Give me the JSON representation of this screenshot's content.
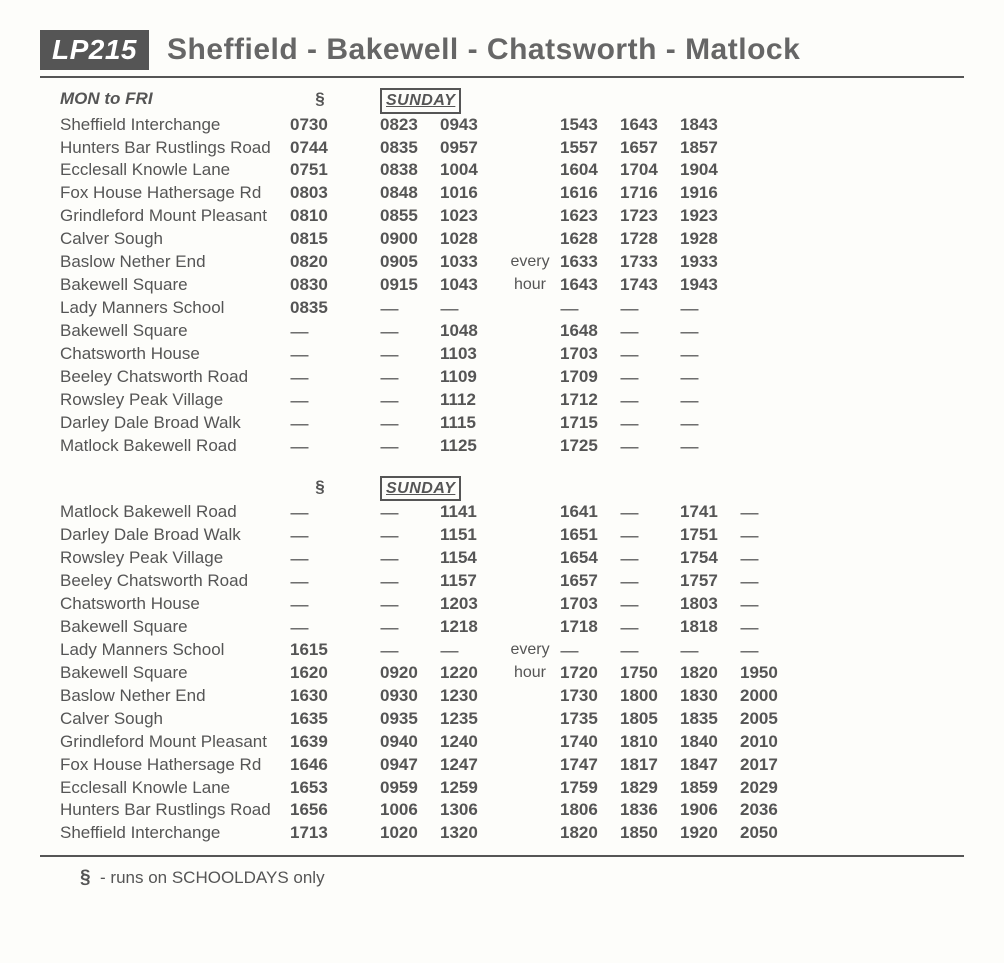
{
  "route_code": "LP215",
  "route_title": "Sheffield - Bakewell - Chatsworth - Matlock",
  "schooldays_symbol": "§",
  "sunday_label": "SUNDAY",
  "day_heading_out": "MON to FRI",
  "every_label": "every",
  "hour_label": "hour",
  "dash": "------",
  "footnote_symbol": "§",
  "footnote_text": "- runs on SCHOOLDAYS only",
  "outbound": {
    "stops": [
      "Sheffield Interchange",
      "Hunters Bar Rustlings Road",
      "Ecclesall Knowle Lane",
      "Fox House Hathersage Rd",
      "Grindleford Mount Pleasant",
      "Calver Sough",
      "Baslow Nether End",
      "Bakewell Square",
      "Lady Manners School",
      "Bakewell Square",
      "Chatsworth House",
      "Beeley Chatsworth Road",
      "Rowsley Peak Village",
      "Darley Dale Broad Walk",
      "Matlock Bakewell Road"
    ],
    "col_monfri": [
      "0730",
      "0744",
      "0751",
      "0803",
      "0810",
      "0815",
      "0820",
      "0830",
      "0835",
      "-",
      "-",
      "-",
      "-",
      "-",
      "-"
    ],
    "col_sun1": [
      "0823",
      "0835",
      "0838",
      "0848",
      "0855",
      "0900",
      "0905",
      "0915",
      "-",
      "-",
      "-",
      "-",
      "-",
      "-",
      "-"
    ],
    "col_sun2": [
      "0943",
      "0957",
      "1004",
      "1016",
      "1023",
      "1028",
      "1033",
      "1043",
      "-",
      "1048",
      "1103",
      "1109",
      "1112",
      "1115",
      "1125"
    ],
    "col_sun3": [
      "1543",
      "1557",
      "1604",
      "1616",
      "1623",
      "1628",
      "1633",
      "1643",
      "-",
      "1648",
      "1703",
      "1709",
      "1712",
      "1715",
      "1725"
    ],
    "col_sun4": [
      "1643",
      "1657",
      "1704",
      "1716",
      "1723",
      "1728",
      "1733",
      "1743",
      "-",
      "-",
      "-",
      "-",
      "-",
      "-",
      "-"
    ],
    "col_sun5": [
      "1843",
      "1857",
      "1904",
      "1916",
      "1923",
      "1928",
      "1933",
      "1943",
      "-",
      "-",
      "-",
      "-",
      "-",
      "-",
      "-"
    ]
  },
  "inbound": {
    "stops": [
      "Matlock Bakewell Road",
      "Darley Dale Broad Walk",
      "Rowsley Peak Village",
      "Beeley Chatsworth Road",
      "Chatsworth House",
      "Bakewell Square",
      "Lady Manners School",
      "Bakewell Square",
      "Baslow Nether End",
      "Calver Sough",
      "Grindleford Mount Pleasant",
      "Fox House Hathersage Rd",
      "Ecclesall Knowle Lane",
      "Hunters Bar Rustlings Road",
      "Sheffield Interchange"
    ],
    "col_monfri": [
      "-",
      "-",
      "-",
      "-",
      "-",
      "-",
      "1615",
      "1620",
      "1630",
      "1635",
      "1639",
      "1646",
      "1653",
      "1656",
      "1713"
    ],
    "col_sun1": [
      "-",
      "-",
      "-",
      "-",
      "-",
      "-",
      "-",
      "0920",
      "0930",
      "0935",
      "0940",
      "0947",
      "0959",
      "1006",
      "1020"
    ],
    "col_sun2": [
      "1141",
      "1151",
      "1154",
      "1157",
      "1203",
      "1218",
      "-",
      "1220",
      "1230",
      "1235",
      "1240",
      "1247",
      "1259",
      "1306",
      "1320"
    ],
    "col_sun3": [
      "1641",
      "1651",
      "1654",
      "1657",
      "1703",
      "1718",
      "-",
      "1720",
      "1730",
      "1735",
      "1740",
      "1747",
      "1759",
      "1806",
      "1820"
    ],
    "col_sun4": [
      "-",
      "-",
      "-",
      "-",
      "-",
      "-",
      "-",
      "1750",
      "1800",
      "1805",
      "1810",
      "1817",
      "1829",
      "1836",
      "1850"
    ],
    "col_sun5": [
      "1741",
      "1751",
      "1754",
      "1757",
      "1803",
      "1818",
      "-",
      "1820",
      "1830",
      "1835",
      "1840",
      "1847",
      "1859",
      "1906",
      "1920"
    ],
    "col_sun6": [
      "-",
      "-",
      "-",
      "-",
      "-",
      "-",
      "-",
      "1950",
      "2000",
      "2005",
      "2010",
      "2017",
      "2029",
      "2036",
      "2050"
    ]
  }
}
